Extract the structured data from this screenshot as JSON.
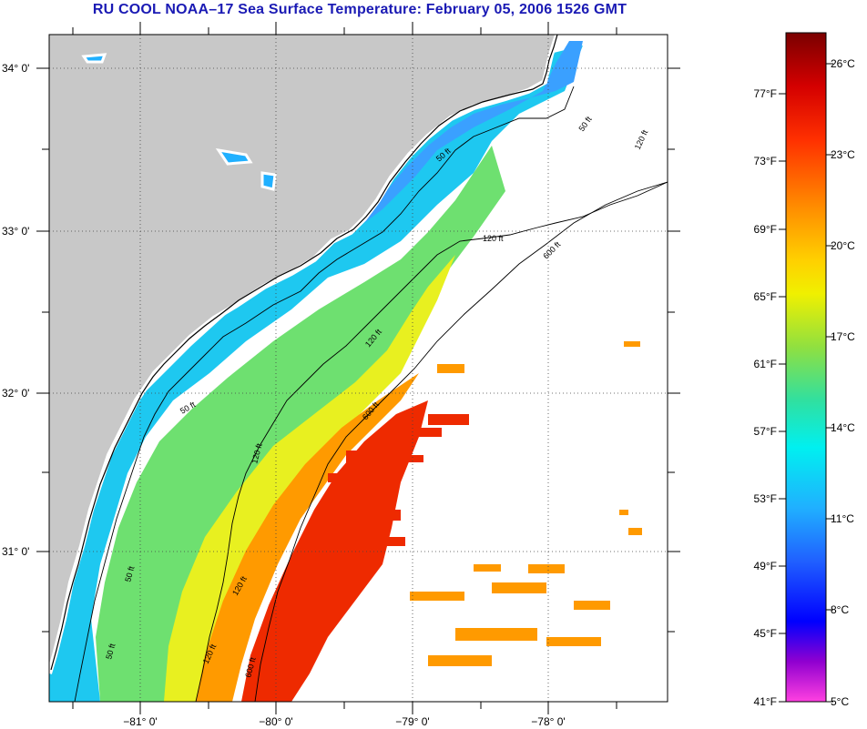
{
  "title": "RU COOL  NOAA–17  Sea Surface Temperature:  February 05, 2006 1526 GMT",
  "map": {
    "lat_labels": [
      "34° 0'",
      "33° 0'",
      "32° 0'",
      "31° 0'"
    ],
    "lon_labels": [
      "−81° 0'",
      "−80° 0'",
      "−79° 0'",
      "−78° 0'"
    ],
    "contour_labels": [
      "50 ft",
      "50 ft",
      "50 ft",
      "50 ft",
      "50 ft",
      "120 ft",
      "120 ft",
      "120 ft",
      "120 ft",
      "120 ft",
      "120 ft",
      "600 ft",
      "600 ft",
      "600 ft"
    ],
    "colors": {
      "land": "#c8c8c8",
      "no_data": "#ffffff",
      "coastline": "#000000"
    }
  },
  "colorbar": {
    "fahrenheit_labels": [
      "77°F",
      "73°F",
      "69°F",
      "65°F",
      "61°F",
      "57°F",
      "53°F",
      "49°F",
      "45°F",
      "41°F"
    ],
    "celsius_labels": [
      "26°C",
      "23°C",
      "20°C",
      "17°C",
      "14°C",
      "11°C",
      "8°C",
      "5°C"
    ],
    "range_celsius": [
      5,
      27
    ],
    "gradient_colors": [
      "#7a0000",
      "#d40000",
      "#ff3000",
      "#ff8c00",
      "#ffd000",
      "#f0f000",
      "#90e040",
      "#30e0a0",
      "#00f0f0",
      "#20b0ff",
      "#2060ff",
      "#0000ff",
      "#9000d0",
      "#ff40e0"
    ]
  }
}
